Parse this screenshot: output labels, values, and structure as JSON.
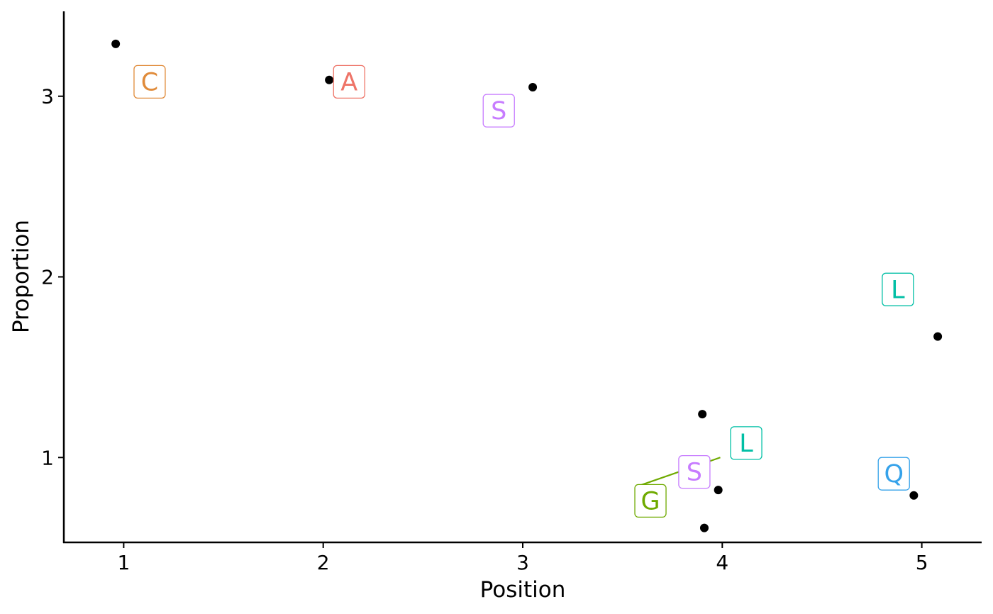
{
  "chart_data": {
    "type": "scatter",
    "xlabel": "Position",
    "ylabel": "Proportion",
    "xlim": [
      0.7,
      5.3
    ],
    "ylim": [
      0.53,
      3.47
    ],
    "x_ticks": [
      1,
      2,
      3,
      4,
      5
    ],
    "y_ticks": [
      1,
      2,
      3
    ],
    "grid": false,
    "points": [
      {
        "x": 0.96,
        "y": 3.29
      },
      {
        "x": 2.03,
        "y": 3.09
      },
      {
        "x": 3.05,
        "y": 3.05
      },
      {
        "x": 3.9,
        "y": 1.24
      },
      {
        "x": 3.98,
        "y": 0.82
      },
      {
        "x": 3.91,
        "y": 0.61
      },
      {
        "x": 4.96,
        "y": 0.79
      },
      {
        "x": 5.08,
        "y": 1.67
      }
    ],
    "labels": [
      {
        "text": "C",
        "x": 1.13,
        "y": 3.08,
        "color": "#E08B3A"
      },
      {
        "text": "A",
        "x": 2.13,
        "y": 3.08,
        "color": "#EE7468"
      },
      {
        "text": "S",
        "x": 2.88,
        "y": 2.92,
        "color": "#C77CFF"
      },
      {
        "text": "L",
        "x": 4.88,
        "y": 1.93,
        "color": "#00BFA5"
      },
      {
        "text": "L",
        "x": 4.12,
        "y": 1.08,
        "color": "#00BFA5"
      },
      {
        "text": "S",
        "x": 3.86,
        "y": 0.92,
        "color": "#C77CFF"
      },
      {
        "text": "Q",
        "x": 4.86,
        "y": 0.91,
        "color": "#35A2EA"
      },
      {
        "text": "G",
        "x": 3.64,
        "y": 0.76,
        "color": "#6FAA00",
        "line_to": {
          "x": 3.99,
          "y": 1.0
        }
      }
    ]
  }
}
